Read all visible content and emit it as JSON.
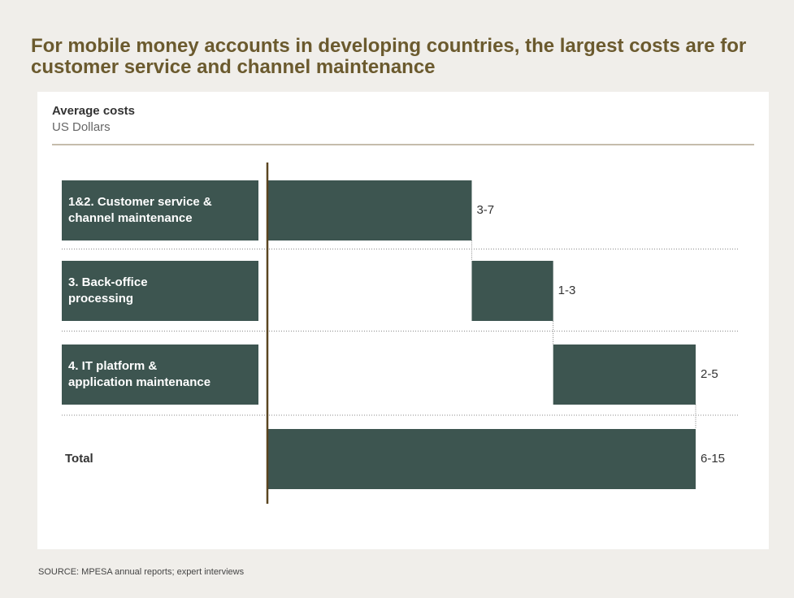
{
  "chart_data": {
    "type": "waterfall",
    "title": "For mobile money accounts in developing countries, the largest costs are for customer service and channel maintenance",
    "subtitle": "Average costs",
    "unit_label": "US Dollars",
    "categories": [
      "1&2. Customer service &\nchannel maintenance",
      "3.  Back-office\nprocessing",
      "4. IT platform &\napplication maintenance",
      "Total"
    ],
    "values": [
      [
        3,
        7
      ],
      [
        1,
        3
      ],
      [
        2,
        5
      ],
      [
        6,
        15
      ]
    ],
    "value_labels": [
      "3-7",
      "1-3",
      "2-5",
      "6-15"
    ],
    "color": "#3d5550",
    "source": "SOURCE: MPESA annual reports; expert interviews"
  }
}
